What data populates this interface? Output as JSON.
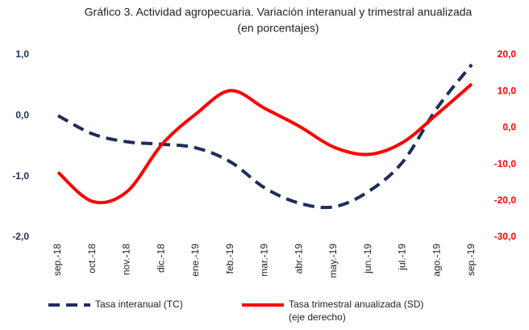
{
  "chart_data": {
    "type": "line",
    "title": "Gráfico 3. Actividad agropecuaria. Variación interanual y trimestral anualizada",
    "subtitle": "(en porcentajes)",
    "categories": [
      "sep.-18",
      "oct.-18",
      "nov.-18",
      "dic.-18",
      "ene.-19",
      "feb.-19",
      "mar.-19",
      "abr.-19",
      "may.-19",
      "jun.-19",
      "jul.-19",
      "ago.-19",
      "sep.-19"
    ],
    "series": [
      {
        "name": "Tasa interanual (TC)",
        "color": "#1f2d5c",
        "dashed": true,
        "values": [
          0.0,
          -0.3,
          -0.43,
          -0.47,
          -0.53,
          -0.76,
          -1.19,
          -1.44,
          -1.5,
          -1.25,
          -0.76,
          0.13,
          0.84
        ]
      },
      {
        "name": "Tasa trimestral anualizada (SD)",
        "color": "#ff0000",
        "axis": "y2",
        "legend_note": "(eje derecho)",
        "values": [
          -12.2,
          -20.2,
          -17.5,
          -4.7,
          3.8,
          10.2,
          5.3,
          0.4,
          -5.3,
          -7.3,
          -4.0,
          3.8,
          12.0
        ]
      }
    ],
    "ylim": [
      -2,
      1
    ],
    "yticks": [
      {
        "value": -2,
        "label": "-2,0"
      },
      {
        "value": -1,
        "label": "-1,0"
      },
      {
        "value": 0,
        "label": "0,0"
      },
      {
        "value": 1,
        "label": "1,0"
      }
    ],
    "y2lim": [
      -30,
      20
    ],
    "y2ticks": [
      {
        "value": -30,
        "label": "-30,0"
      },
      {
        "value": -20,
        "label": "-20,0"
      },
      {
        "value": -10,
        "label": "-10,0"
      },
      {
        "value": 0,
        "label": "0,0"
      },
      {
        "value": 10,
        "label": "10,0"
      },
      {
        "value": 20,
        "label": "20,0"
      }
    ],
    "ycolor": "#1f2d5c",
    "y2color": "#ff0000",
    "grid": false,
    "legend": "bottom"
  }
}
